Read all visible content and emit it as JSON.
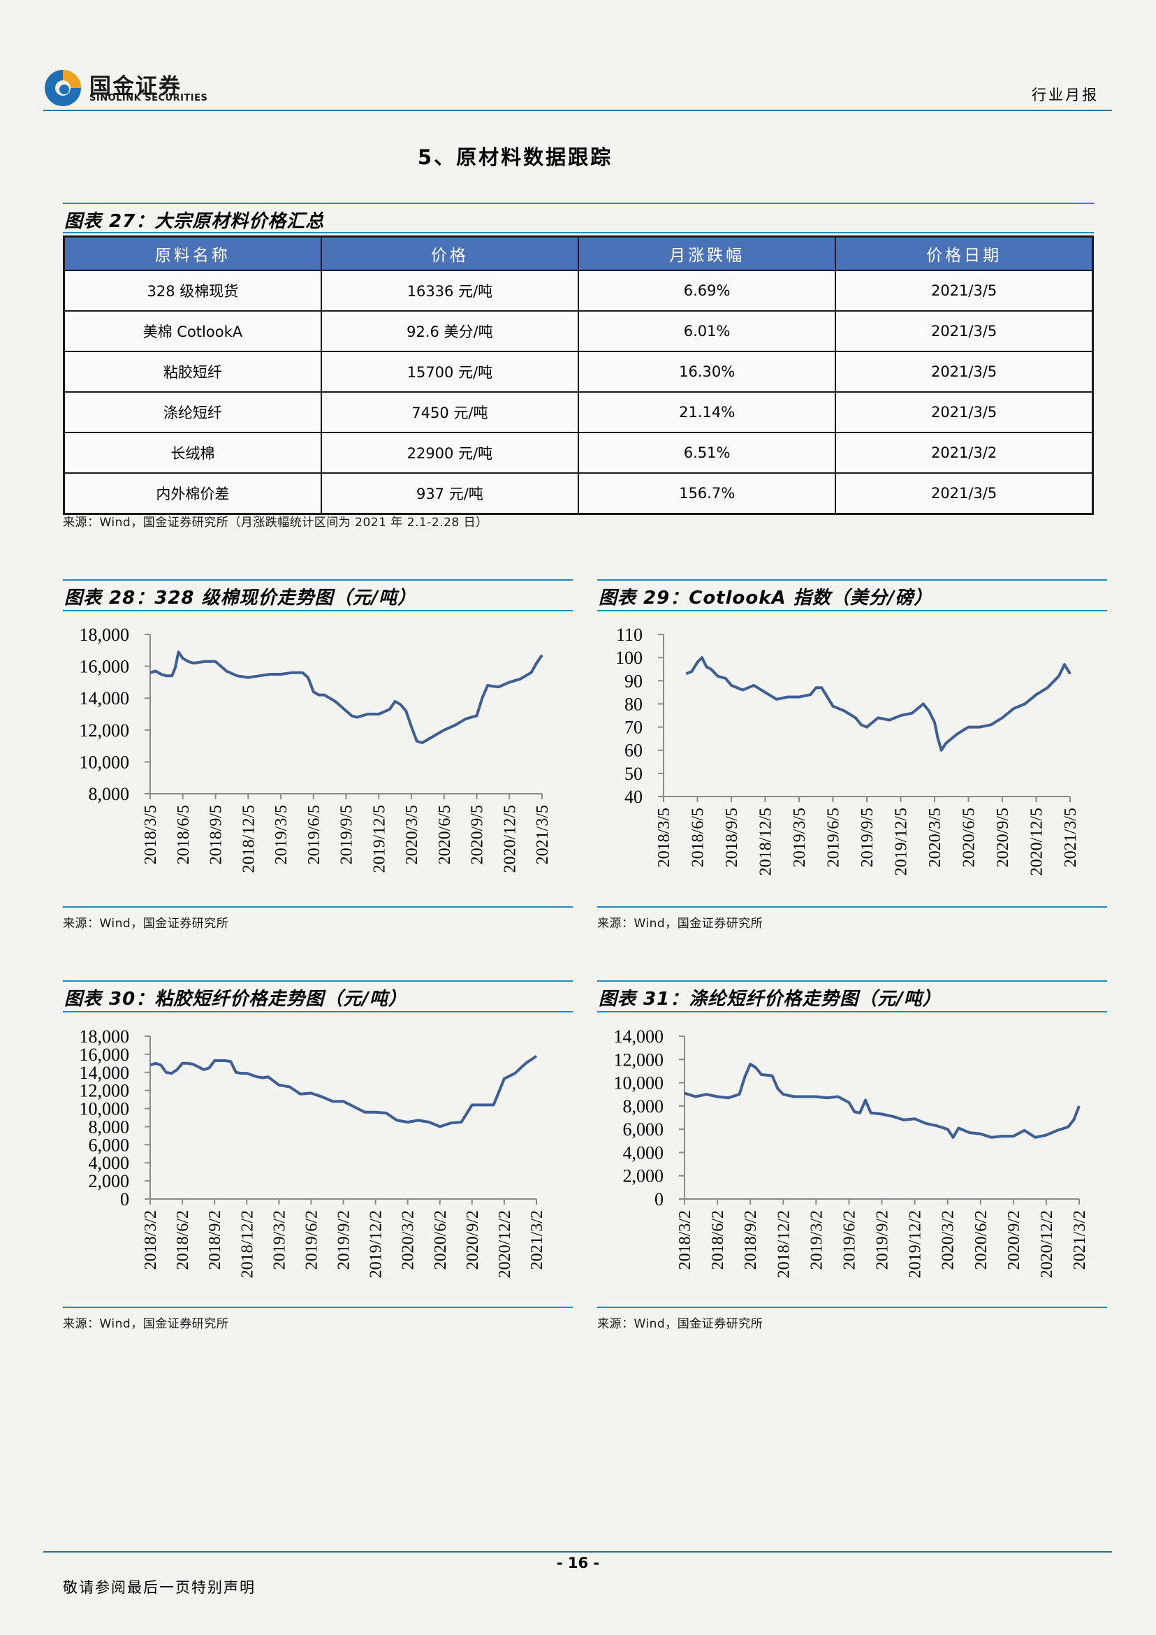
{
  "header": {
    "logo_cn": "国金证券",
    "logo_en": "SINOLINK SECURITIES",
    "label": "行业月报"
  },
  "section_title": "5、原材料数据跟踪",
  "table_figure": {
    "caption": "图表 27：大宗原材料价格汇总",
    "columns": [
      "原料名称",
      "价格",
      "月涨跌幅",
      "价格日期"
    ],
    "rows": [
      [
        "328 级棉现货",
        "16336 元/吨",
        "6.69%",
        "2021/3/5"
      ],
      [
        "美棉 CotlookA",
        "92.6 美分/吨",
        "6.01%",
        "2021/3/5"
      ],
      [
        "粘胶短纤",
        "15700 元/吨",
        "16.30%",
        "2021/3/5"
      ],
      [
        "涤纶短纤",
        "7450 元/吨",
        "21.14%",
        "2021/3/5"
      ],
      [
        "长绒棉",
        "22900 元/吨",
        "6.51%",
        "2021/3/2"
      ],
      [
        "内外棉价差",
        "937 元/吨",
        "156.7%",
        "2021/3/5"
      ]
    ],
    "source": "来源：Wind，国金证券研究所（月涨跌幅统计区间为 2021 年 2.1-2.28 日）"
  },
  "charts": [
    {
      "caption": "图表 28：328 级棉现价走势图（元/吨）",
      "source": "来源：Wind，国金证券研究所"
    },
    {
      "caption": "图表 29：CotlookA 指数（美分/磅）",
      "source": "来源：Wind，国金证券研究所"
    },
    {
      "caption": "图表 30：粘胶短纤价格走势图（元/吨）",
      "source": "来源：Wind，国金证券研究所"
    },
    {
      "caption": "图表 31：涤纶短纤价格走势图（元/吨）",
      "source": "来源：Wind，国金证券研究所"
    }
  ],
  "chart_data": [
    {
      "type": "line",
      "title": "328 级棉现价走势图（元/吨）",
      "color": "#3d5f95",
      "ylim": [
        8000,
        18000
      ],
      "yticks": [
        8000,
        10000,
        12000,
        14000,
        16000,
        18000
      ],
      "ytick_labels": [
        "8,000",
        "10,000",
        "12,000",
        "14,000",
        "16,000",
        "18,000"
      ],
      "xlim": [
        0,
        36
      ],
      "xticks": [
        "2018/3/5",
        "2018/6/5",
        "2018/9/5",
        "2018/12/5",
        "2019/3/5",
        "2019/6/5",
        "2019/9/5",
        "2019/12/5",
        "2020/3/5",
        "2020/6/5",
        "2020/9/5",
        "2020/12/5",
        "2021/3/5"
      ],
      "x": [
        0,
        0.5,
        1,
        1.5,
        2,
        2.3,
        2.6,
        3,
        3.5,
        4,
        5,
        6,
        6.5,
        7,
        8,
        9,
        10,
        11,
        12,
        13,
        14,
        14.5,
        15,
        15.5,
        16,
        17,
        18,
        18.5,
        19,
        20,
        21,
        22,
        22.5,
        23,
        23.5,
        24,
        24.5,
        25,
        26,
        27,
        28,
        29,
        30,
        30.5,
        31,
        32,
        33,
        34,
        35,
        35.5,
        36
      ],
      "y": [
        15600,
        15700,
        15500,
        15400,
        15400,
        15900,
        16900,
        16500,
        16300,
        16200,
        16300,
        16300,
        16000,
        15700,
        15400,
        15300,
        15400,
        15500,
        15500,
        15600,
        15600,
        15300,
        14400,
        14200,
        14200,
        13800,
        13200,
        12900,
        12800,
        13000,
        13000,
        13300,
        13800,
        13600,
        13200,
        12200,
        11300,
        11200,
        11600,
        12000,
        12300,
        12700,
        12900,
        14000,
        14800,
        14700,
        15000,
        15200,
        15600,
        16200,
        16700
      ]
    },
    {
      "type": "line",
      "title": "CotlookA 指数（美分/磅）",
      "color": "#3d5f95",
      "ylim": [
        40,
        110
      ],
      "yticks": [
        40,
        50,
        60,
        70,
        80,
        90,
        100,
        110
      ],
      "ytick_labels": [
        "40",
        "50",
        "60",
        "70",
        "80",
        "90",
        "100",
        "110"
      ],
      "xlim": [
        0,
        36
      ],
      "xticks": [
        "2018/3/5",
        "2018/6/5",
        "2018/9/5",
        "2018/12/5",
        "2019/3/5",
        "2019/6/5",
        "2019/9/5",
        "2019/12/5",
        "2020/3/5",
        "2020/6/5",
        "2020/9/5",
        "2020/12/5",
        "2021/3/5"
      ],
      "x": [
        2,
        2.5,
        3,
        3.4,
        3.8,
        4.2,
        4.8,
        5.5,
        6,
        7,
        7.5,
        8,
        9,
        10,
        11,
        12,
        13,
        13.5,
        14,
        15,
        16,
        17,
        17.5,
        18,
        19,
        20,
        21,
        22,
        22.5,
        23,
        23.5,
        24,
        24.3,
        24.6,
        25,
        26,
        27,
        28,
        29,
        30,
        31,
        32,
        33,
        34,
        35,
        35.5,
        36
      ],
      "y": [
        93,
        94,
        98,
        100,
        96,
        95,
        92,
        91,
        88,
        86,
        87,
        88,
        85,
        82,
        83,
        83,
        84,
        87,
        87,
        79,
        77,
        74,
        71,
        70,
        74,
        73,
        75,
        76,
        78,
        80,
        77,
        72,
        65,
        60,
        63,
        67,
        70,
        70,
        71,
        74,
        78,
        80,
        84,
        87,
        92,
        97,
        93
      ]
    },
    {
      "type": "line",
      "title": "粘胶短纤价格走势图（元/吨）",
      "color": "#3d5f95",
      "ylim": [
        0,
        18000
      ],
      "yticks": [
        0,
        2000,
        4000,
        6000,
        8000,
        10000,
        12000,
        14000,
        16000,
        18000
      ],
      "ytick_labels": [
        "0",
        "2,000",
        "4,000",
        "6,000",
        "8,000",
        "10,000",
        "12,000",
        "14,000",
        "16,000",
        "18,000"
      ],
      "xlim": [
        0,
        36
      ],
      "xticks": [
        "2018/3/2",
        "2018/6/2",
        "2018/9/2",
        "2018/12/2",
        "2019/3/2",
        "2019/6/2",
        "2019/9/2",
        "2019/12/2",
        "2020/3/2",
        "2020/6/2",
        "2020/9/2",
        "2020/12/2",
        "2021/3/2"
      ],
      "x": [
        0,
        0.5,
        1,
        1.5,
        2,
        2.5,
        3,
        3.5,
        4,
        5,
        5.5,
        6,
        7,
        7.5,
        8,
        8.5,
        9,
        10,
        10.5,
        11,
        12,
        12.5,
        13,
        14,
        15,
        16,
        17,
        18,
        19,
        20,
        21,
        22,
        23,
        24,
        25,
        26,
        27,
        28,
        29,
        30,
        31,
        32,
        33,
        34,
        35,
        36
      ],
      "y": [
        14800,
        15000,
        14800,
        14000,
        13900,
        14300,
        15000,
        15000,
        14900,
        14300,
        14500,
        15300,
        15300,
        15200,
        14000,
        13900,
        13900,
        13500,
        13400,
        13500,
        12600,
        12500,
        12400,
        11600,
        11700,
        11300,
        10800,
        10800,
        10200,
        9600,
        9600,
        9500,
        8700,
        8500,
        8700,
        8500,
        8000,
        8400,
        8500,
        10400,
        10400,
        10400,
        13300,
        13900,
        15000,
        15800
      ]
    },
    {
      "type": "line",
      "title": "涤纶短纤价格走势图（元/吨）",
      "color": "#3d5f95",
      "ylim": [
        0,
        14000
      ],
      "yticks": [
        0,
        2000,
        4000,
        6000,
        8000,
        10000,
        12000,
        14000
      ],
      "ytick_labels": [
        "0",
        "2,000",
        "4,000",
        "6,000",
        "8,000",
        "10,000",
        "12,000",
        "14,000"
      ],
      "xlim": [
        0,
        36
      ],
      "xticks": [
        "2018/3/2",
        "2018/6/2",
        "2018/9/2",
        "2018/12/2",
        "2019/3/2",
        "2019/6/2",
        "2019/9/2",
        "2019/12/2",
        "2020/3/2",
        "2020/6/2",
        "2020/9/2",
        "2020/12/2",
        "2021/3/2"
      ],
      "x": [
        0,
        1,
        2,
        3,
        4,
        5,
        5.5,
        6,
        6.5,
        7,
        8,
        8.5,
        9,
        10,
        11,
        12,
        13,
        14,
        15,
        15.5,
        16,
        16.5,
        17,
        18,
        19,
        20,
        21,
        22,
        23,
        24,
        24.5,
        25,
        26,
        27,
        28,
        29,
        30,
        31,
        32,
        33,
        34,
        35,
        35.5,
        36
      ],
      "y": [
        9100,
        8800,
        9000,
        8800,
        8700,
        9000,
        10500,
        11600,
        11300,
        10700,
        10600,
        9500,
        9000,
        8800,
        8800,
        8800,
        8700,
        8800,
        8300,
        7500,
        7400,
        8500,
        7400,
        7300,
        7100,
        6800,
        6900,
        6500,
        6300,
        6000,
        5300,
        6100,
        5700,
        5600,
        5300,
        5400,
        5400,
        5900,
        5300,
        5500,
        5900,
        6200,
        6800,
        8000
      ]
    }
  ]
}
